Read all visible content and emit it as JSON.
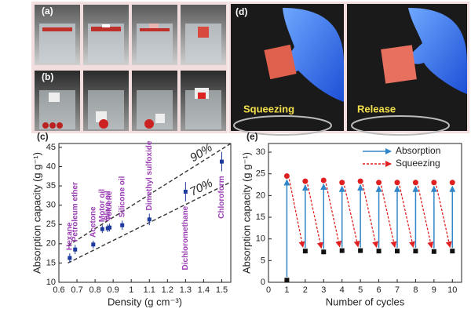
{
  "photos": {
    "a_label": "(a)",
    "b_label": "(b)",
    "d_label": "(d)",
    "left_caption": "Squeezing",
    "right_caption": "Release"
  },
  "chart_data": [
    {
      "type": "scatter",
      "panel_label": "(c)",
      "x_label": "Density (g cm⁻³)",
      "y_label": "Absorption capacity (g g⁻¹)",
      "x": [
        0.66,
        0.69,
        0.79,
        0.84,
        0.87,
        0.88,
        0.95,
        1.1,
        1.3,
        1.5
      ],
      "values": [
        16.3,
        18.5,
        19.8,
        23.8,
        24,
        24.2,
        24.8,
        26.3,
        33.5,
        41.3
      ],
      "errors": [
        1.2,
        1.2,
        1,
        1,
        1,
        1,
        1.2,
        1.5,
        2.5,
        2.5
      ],
      "point_labels": [
        "Hexane",
        "Petroleum ether",
        "Acetone",
        "Motor oil",
        "Olive oil",
        "Toluene",
        "Silicone oil",
        "Dimethyl sulfoxide",
        "Dichloromethane",
        "Chloroform"
      ],
      "color": "#1f3a9e",
      "label_color": "#9b3fb5",
      "fit_lines": [
        {
          "label": "90%",
          "x": [
            0.65,
            1.55
          ],
          "y": [
            19.5,
            46
          ]
        },
        {
          "label": "70%",
          "x": [
            0.65,
            1.55
          ],
          "y": [
            15,
            36
          ]
        }
      ],
      "xlim": [
        0.6,
        1.55
      ],
      "xticks": [
        0.6,
        0.7,
        0.8,
        0.9,
        1.0,
        1.1,
        1.2,
        1.3,
        1.4,
        1.5
      ],
      "ylim": [
        10,
        46
      ],
      "yticks": [
        10,
        15,
        20,
        25,
        30,
        35,
        40,
        45
      ]
    },
    {
      "type": "cycles",
      "panel_label": "(e)",
      "x_label": "Number of cycles",
      "y_label": "Absorption capacity (g g⁻¹)",
      "x": [
        1,
        2,
        3,
        4,
        5,
        6,
        7,
        8,
        9,
        10
      ],
      "absorbed": {
        "color": "#e02020",
        "values": [
          24.5,
          23.3,
          23.5,
          23,
          23.3,
          23,
          23,
          23,
          23,
          23
        ]
      },
      "squeezed": {
        "color": "#111111",
        "values": [
          0.5,
          7.2,
          7,
          7.3,
          7.3,
          7.2,
          7.2,
          7.2,
          7.1,
          7.2
        ]
      },
      "series": [
        {
          "name": "Absorption",
          "color": "#2f86c8"
        },
        {
          "name": "Squeezing",
          "color": "#e02020"
        }
      ],
      "xlim": [
        0,
        10.5
      ],
      "xticks": [
        0,
        1,
        2,
        3,
        4,
        5,
        6,
        7,
        8,
        9,
        10
      ],
      "ylim": [
        0,
        32
      ],
      "yticks": [
        0,
        5,
        10,
        15,
        20,
        25,
        30
      ]
    }
  ]
}
